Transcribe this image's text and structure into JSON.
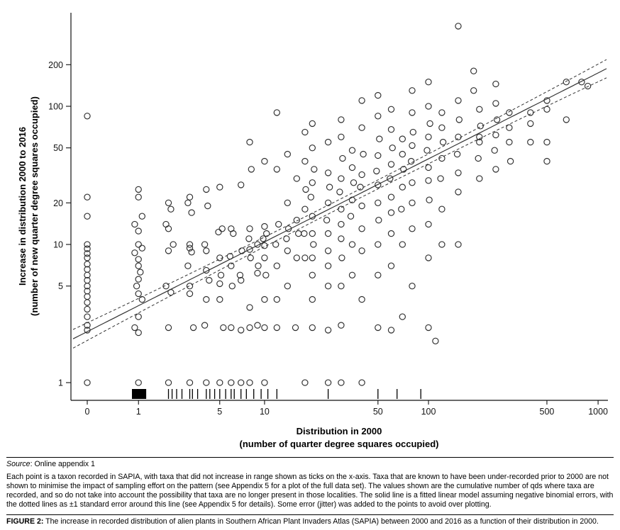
{
  "figure": {
    "source_label": "Source",
    "source_rest": ": Online appendix 1",
    "note_text": "Each point is a taxon recorded in SAPIA, with taxa that did not increase in range shown as ticks on the x-axis. Taxa that are known to have been under-recorded prior to 2000 are not shown to minimise the impact of sampling effort on the pattern (see Appendix 5 for a plot of the full data set). The values shown are the cumulative number of qds where taxa are recorded, and so do not take into account the possibility that taxa are no longer present in those localities. The solid line is a fitted linear model assuming negative binomial errors, with the dotted lines as ±1 standard error around this line (see Appendix 5 for details). Some error (jitter) was added to the points to avoid over plotting.",
    "caption_label": "FIGURE 2:",
    "caption_text": "The increase in recorded distribution of alien plants in Southern African Plant Invaders Atlas (SAPIA) between 2000 and 2016 as a function of their distribution in 2000."
  },
  "chart_data": {
    "type": "scatter",
    "title": "",
    "xlabel_line1": "Distribution in 2000",
    "xlabel_line2": "(number of quarter degree squares occupied)",
    "ylabel_line1": "Increase in distribution 2000 to 2016",
    "ylabel_line2": "(number of new quarter degree squares occupied)",
    "x_scale": "log10(x+1)",
    "y_scale": "log10(y)",
    "xlim": [
      0,
      1000
    ],
    "ylim": [
      1,
      400
    ],
    "grid": false,
    "x_ticks": [
      0,
      1,
      5,
      10,
      50,
      100,
      500,
      1000
    ],
    "y_ticks": [
      1,
      5,
      10,
      20,
      50,
      100,
      200
    ],
    "marker": "open-circle",
    "fit_line": {
      "type": "negative-binomial GLM fit (log-log space)",
      "intercept": 0.369,
      "slope": 0.624
    },
    "se_band": {
      "base": 0.032,
      "spread": 0.034,
      "meaning": "±1 standard error dotted lines"
    },
    "rug_x": [
      2,
      2.15,
      2.35,
      2.6,
      3,
      3.15,
      3.45,
      4,
      4.25,
      4.6,
      5,
      5.5,
      6,
      6.3,
      7,
      7.6,
      8.5,
      9.5,
      10.5,
      12,
      25,
      50,
      65,
      90
    ],
    "rug_block_x_range": [
      0.83,
      1.22
    ],
    "points": [
      [
        0,
        85
      ],
      [
        0,
        22
      ],
      [
        0,
        16
      ],
      [
        0,
        10
      ],
      [
        0,
        9.3
      ],
      [
        0,
        8.6
      ],
      [
        0,
        8
      ],
      [
        0,
        7.2
      ],
      [
        0,
        6.6
      ],
      [
        0,
        6
      ],
      [
        0,
        5.5
      ],
      [
        0,
        5
      ],
      [
        0,
        4.6
      ],
      [
        0,
        4.2
      ],
      [
        0,
        3.8
      ],
      [
        0,
        3.4
      ],
      [
        0,
        3
      ],
      [
        0,
        2.6
      ],
      [
        0,
        2.4
      ],
      [
        0,
        1
      ],
      [
        1,
        25
      ],
      [
        1,
        22
      ],
      [
        1.1,
        16
      ],
      [
        0.9,
        14
      ],
      [
        1,
        12.5
      ],
      [
        1,
        10
      ],
      [
        1.1,
        9.4
      ],
      [
        0.9,
        8.7
      ],
      [
        1,
        7.8
      ],
      [
        1,
        7
      ],
      [
        1.05,
        6.3
      ],
      [
        1,
        5.6
      ],
      [
        0.95,
        5
      ],
      [
        1,
        4.4
      ],
      [
        1.1,
        4
      ],
      [
        1,
        3
      ],
      [
        0.9,
        2.5
      ],
      [
        1,
        2.3
      ],
      [
        1,
        1
      ],
      [
        2,
        20
      ],
      [
        2.1,
        18
      ],
      [
        1.9,
        14
      ],
      [
        2,
        13
      ],
      [
        2.2,
        10
      ],
      [
        2,
        9
      ],
      [
        1.9,
        5
      ],
      [
        2.1,
        4.5
      ],
      [
        2,
        2.5
      ],
      [
        2,
        1
      ],
      [
        3,
        22
      ],
      [
        2.9,
        20
      ],
      [
        3.1,
        17
      ],
      [
        3,
        10
      ],
      [
        3,
        9.4
      ],
      [
        3.1,
        8.8
      ],
      [
        2.9,
        7
      ],
      [
        3,
        5
      ],
      [
        3,
        4.4
      ],
      [
        3.2,
        2.5
      ],
      [
        3,
        1
      ],
      [
        4,
        25
      ],
      [
        4.1,
        19
      ],
      [
        3.9,
        10
      ],
      [
        4,
        9
      ],
      [
        4,
        6.5
      ],
      [
        4.2,
        5.5
      ],
      [
        4,
        4
      ],
      [
        3.9,
        2.6
      ],
      [
        4,
        1
      ],
      [
        5,
        26
      ],
      [
        5.2,
        13
      ],
      [
        4.9,
        12.3
      ],
      [
        5,
        8
      ],
      [
        5.1,
        6
      ],
      [
        5,
        5.2
      ],
      [
        5,
        4
      ],
      [
        5.3,
        2.5
      ],
      [
        5,
        1
      ],
      [
        6,
        13
      ],
      [
        6.2,
        12
      ],
      [
        5.9,
        8.2
      ],
      [
        6,
        7
      ],
      [
        6.1,
        5
      ],
      [
        6,
        2.5
      ],
      [
        6,
        1
      ],
      [
        7,
        27
      ],
      [
        7.1,
        9
      ],
      [
        6.9,
        6
      ],
      [
        7,
        5.5
      ],
      [
        7,
        2.4
      ],
      [
        7,
        1
      ],
      [
        8,
        55
      ],
      [
        8.2,
        35
      ],
      [
        8,
        13
      ],
      [
        7.9,
        11
      ],
      [
        8,
        9.2
      ],
      [
        8.1,
        8
      ],
      [
        8,
        3.5
      ],
      [
        8,
        2.5
      ],
      [
        8,
        1
      ],
      [
        9,
        10
      ],
      [
        9.1,
        7
      ],
      [
        9,
        6.2
      ],
      [
        9,
        2.6
      ],
      [
        10,
        40
      ],
      [
        10,
        13.5
      ],
      [
        10.3,
        12
      ],
      [
        9.8,
        11
      ],
      [
        10,
        9.8
      ],
      [
        10,
        8
      ],
      [
        10.2,
        6
      ],
      [
        10,
        4
      ],
      [
        10,
        2.5
      ],
      [
        10,
        1
      ],
      [
        12,
        90
      ],
      [
        12,
        35
      ],
      [
        12.3,
        14
      ],
      [
        11.8,
        10
      ],
      [
        12,
        7
      ],
      [
        12,
        4
      ],
      [
        12,
        2.5
      ],
      [
        14,
        45
      ],
      [
        14,
        20
      ],
      [
        14.2,
        13
      ],
      [
        13.8,
        11
      ],
      [
        14,
        9
      ],
      [
        14,
        5
      ],
      [
        16,
        30
      ],
      [
        16,
        15
      ],
      [
        16.4,
        12
      ],
      [
        16,
        8
      ],
      [
        15.7,
        2.5
      ],
      [
        18,
        65
      ],
      [
        18,
        40
      ],
      [
        18.2,
        25
      ],
      [
        18,
        18
      ],
      [
        17.8,
        12
      ],
      [
        18,
        8
      ],
      [
        18,
        1
      ],
      [
        20,
        75
      ],
      [
        20,
        50
      ],
      [
        20.5,
        35
      ],
      [
        20,
        28
      ],
      [
        19.6,
        22
      ],
      [
        20,
        16
      ],
      [
        20,
        12
      ],
      [
        20.3,
        10
      ],
      [
        20,
        8
      ],
      [
        20,
        6
      ],
      [
        20,
        4
      ],
      [
        20,
        2.5
      ],
      [
        25,
        55
      ],
      [
        25,
        33
      ],
      [
        25.5,
        26
      ],
      [
        25,
        20
      ],
      [
        24.5,
        15
      ],
      [
        25,
        12
      ],
      [
        25,
        9
      ],
      [
        25,
        7
      ],
      [
        25,
        5
      ],
      [
        25,
        2.4
      ],
      [
        25,
        1
      ],
      [
        30,
        80
      ],
      [
        30,
        60
      ],
      [
        30.6,
        42
      ],
      [
        30,
        30
      ],
      [
        29.4,
        24
      ],
      [
        30,
        18
      ],
      [
        30,
        14
      ],
      [
        30,
        11
      ],
      [
        30.3,
        8
      ],
      [
        30,
        5
      ],
      [
        30,
        2.6
      ],
      [
        30,
        1
      ],
      [
        35,
        48
      ],
      [
        35,
        36
      ],
      [
        35.7,
        28
      ],
      [
        35,
        21
      ],
      [
        34.3,
        16
      ],
      [
        35,
        10
      ],
      [
        35,
        6
      ],
      [
        40,
        110
      ],
      [
        40,
        70
      ],
      [
        40.8,
        45
      ],
      [
        40,
        32
      ],
      [
        39.2,
        26
      ],
      [
        40,
        19
      ],
      [
        40,
        13
      ],
      [
        40,
        9
      ],
      [
        40,
        4
      ],
      [
        40,
        1
      ],
      [
        50,
        120
      ],
      [
        50,
        85
      ],
      [
        51,
        58
      ],
      [
        50,
        44
      ],
      [
        49,
        34
      ],
      [
        50,
        27
      ],
      [
        50,
        20
      ],
      [
        50.5,
        15
      ],
      [
        50,
        10
      ],
      [
        50,
        6
      ],
      [
        50,
        2.5
      ],
      [
        60,
        95
      ],
      [
        60,
        68
      ],
      [
        61,
        50
      ],
      [
        60,
        38
      ],
      [
        59,
        30
      ],
      [
        60,
        22
      ],
      [
        60,
        17
      ],
      [
        60,
        12
      ],
      [
        60,
        7
      ],
      [
        60,
        2.4
      ],
      [
        70,
        58
      ],
      [
        70,
        45
      ],
      [
        71,
        35
      ],
      [
        70,
        26
      ],
      [
        69,
        18
      ],
      [
        70,
        10
      ],
      [
        70,
        3
      ],
      [
        80,
        130
      ],
      [
        80,
        90
      ],
      [
        81,
        65
      ],
      [
        80,
        52
      ],
      [
        79,
        40
      ],
      [
        80,
        28
      ],
      [
        80,
        20
      ],
      [
        80,
        13
      ],
      [
        80,
        5
      ],
      [
        100,
        150
      ],
      [
        100,
        100
      ],
      [
        102,
        75
      ],
      [
        100,
        60
      ],
      [
        98,
        48
      ],
      [
        100,
        36
      ],
      [
        100,
        29
      ],
      [
        101,
        21
      ],
      [
        100,
        14
      ],
      [
        100,
        8
      ],
      [
        100,
        2.5
      ],
      [
        110,
        2
      ],
      [
        120,
        90
      ],
      [
        120,
        70
      ],
      [
        122,
        55
      ],
      [
        120,
        42
      ],
      [
        118,
        30
      ],
      [
        120,
        18
      ],
      [
        120,
        10
      ],
      [
        150,
        380
      ],
      [
        150,
        110
      ],
      [
        152,
        80
      ],
      [
        150,
        60
      ],
      [
        148,
        45
      ],
      [
        150,
        33
      ],
      [
        150,
        24
      ],
      [
        150,
        10
      ],
      [
        185,
        180
      ],
      [
        185,
        130
      ],
      [
        200,
        95
      ],
      [
        203,
        72
      ],
      [
        200,
        55
      ],
      [
        197,
        42
      ],
      [
        200,
        30
      ],
      [
        200,
        60
      ],
      [
        250,
        145
      ],
      [
        250,
        105
      ],
      [
        254,
        80
      ],
      [
        250,
        62
      ],
      [
        246,
        48
      ],
      [
        250,
        35
      ],
      [
        300,
        90
      ],
      [
        300,
        70
      ],
      [
        300,
        55
      ],
      [
        305,
        40
      ],
      [
        400,
        90
      ],
      [
        400,
        75
      ],
      [
        400,
        55
      ],
      [
        500,
        110
      ],
      [
        500,
        95
      ],
      [
        500,
        55
      ],
      [
        500,
        40
      ],
      [
        650,
        150
      ],
      [
        650,
        80
      ],
      [
        800,
        150
      ],
      [
        870,
        140
      ]
    ]
  }
}
